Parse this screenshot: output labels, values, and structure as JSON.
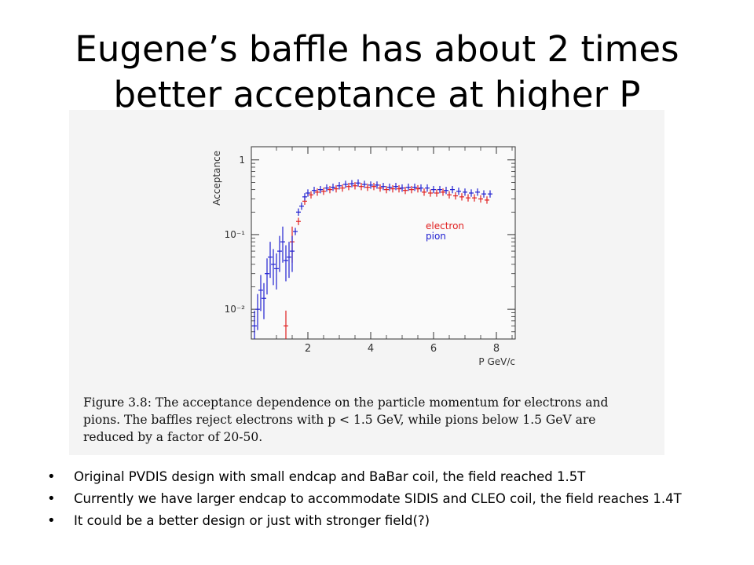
{
  "slide": {
    "title": "Eugene’s baffle has about 2 times better acceptance at higher P"
  },
  "figure": {
    "caption": "Figure 3.8: The acceptance dependence on the particle momentum for electrons and pions. The baffles reject electrons with p < 1.5 GeV, while pions below 1.5 GeV are reduced by a factor of 20-50."
  },
  "chart_data": {
    "type": "scatter",
    "title": "",
    "xlabel": "P GeV/c",
    "ylabel": "Acceptance",
    "xlim": [
      0.2,
      8.6
    ],
    "ylim": [
      0.004,
      1.5
    ],
    "yscale": "log",
    "x_ticks": [
      "2",
      "4",
      "6",
      "8"
    ],
    "x_tick_values": [
      2,
      4,
      6,
      8
    ],
    "y_ticks": [
      "1",
      "10⁻¹",
      "10⁻²"
    ],
    "y_tick_values": [
      1,
      0.1,
      0.01
    ],
    "legend_position": "right",
    "series": [
      {
        "name": "electron",
        "color": "#e02020",
        "x": [
          1.3,
          1.5,
          1.7,
          1.9,
          2.1,
          2.3,
          2.5,
          2.7,
          2.9,
          3.1,
          3.3,
          3.5,
          3.7,
          3.9,
          4.1,
          4.3,
          4.5,
          4.7,
          4.9,
          5.1,
          5.3,
          5.5,
          5.7,
          5.9,
          6.1,
          6.3,
          6.5,
          6.7,
          6.9,
          7.1,
          7.3,
          7.5,
          7.7
        ],
        "y": [
          0.006,
          0.08,
          0.15,
          0.28,
          0.34,
          0.37,
          0.38,
          0.4,
          0.41,
          0.42,
          0.44,
          0.45,
          0.44,
          0.43,
          0.44,
          0.42,
          0.4,
          0.41,
          0.41,
          0.39,
          0.4,
          0.41,
          0.37,
          0.36,
          0.36,
          0.37,
          0.34,
          0.33,
          0.32,
          0.31,
          0.31,
          0.3,
          0.29
        ]
      },
      {
        "name": "pion",
        "color": "#2020d0",
        "x": [
          0.3,
          0.4,
          0.5,
          0.6,
          0.7,
          0.8,
          0.9,
          1.0,
          1.1,
          1.2,
          1.3,
          1.4,
          1.5,
          1.6,
          1.7,
          1.8,
          1.9,
          2.0,
          2.2,
          2.4,
          2.6,
          2.8,
          3.0,
          3.2,
          3.4,
          3.6,
          3.8,
          4.0,
          4.2,
          4.4,
          4.6,
          4.8,
          5.0,
          5.2,
          5.4,
          5.6,
          5.8,
          6.0,
          6.2,
          6.4,
          6.6,
          6.8,
          7.0,
          7.2,
          7.4,
          7.6,
          7.8
        ],
        "y": [
          0.006,
          0.01,
          0.018,
          0.014,
          0.03,
          0.05,
          0.04,
          0.035,
          0.06,
          0.08,
          0.045,
          0.05,
          0.06,
          0.11,
          0.2,
          0.24,
          0.32,
          0.36,
          0.39,
          0.4,
          0.42,
          0.43,
          0.45,
          0.47,
          0.48,
          0.49,
          0.47,
          0.46,
          0.46,
          0.44,
          0.43,
          0.44,
          0.42,
          0.43,
          0.43,
          0.42,
          0.42,
          0.4,
          0.4,
          0.39,
          0.4,
          0.38,
          0.37,
          0.36,
          0.37,
          0.35,
          0.35
        ]
      }
    ]
  },
  "bullets": [
    "Original PVDIS design with small endcap and BaBar coil, the field reached 1.5T",
    "Currently we have larger endcap to accommodate SIDIS and CLEO coil, the field reaches 1.4T",
    "It could be a better design or just with stronger field(?)"
  ]
}
